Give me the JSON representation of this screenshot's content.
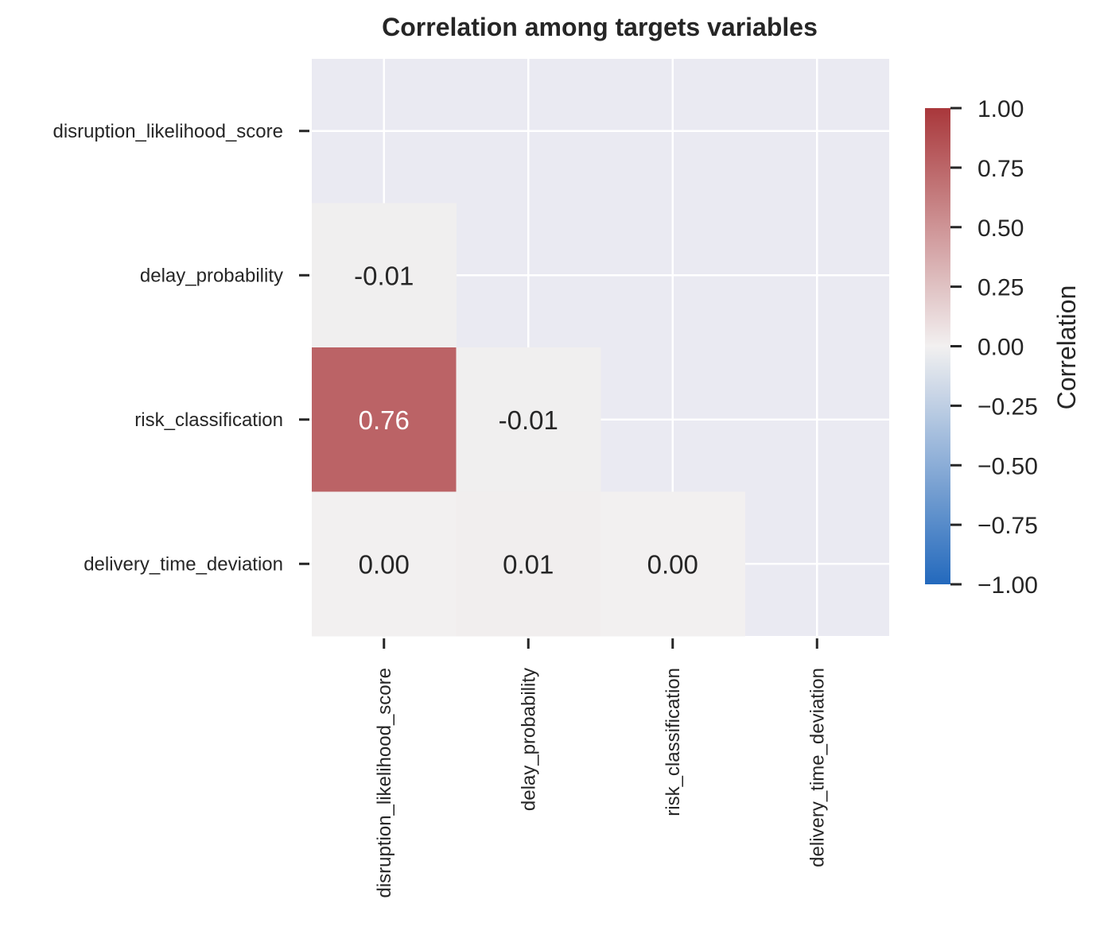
{
  "chart_data": {
    "type": "heatmap",
    "title": "Correlation among targets variables",
    "variables": [
      "disruption_likelihood_score",
      "delay_probability",
      "risk_classification",
      "delivery_time_deviation"
    ],
    "mask": "upper-triangle-including-diagonal",
    "cells": [
      {
        "row": 1,
        "col": 0,
        "value": -0.01,
        "label": "-0.01"
      },
      {
        "row": 2,
        "col": 0,
        "value": 0.76,
        "label": "0.76"
      },
      {
        "row": 2,
        "col": 1,
        "value": -0.01,
        "label": "-0.01"
      },
      {
        "row": 3,
        "col": 0,
        "value": 0.0,
        "label": "0.00"
      },
      {
        "row": 3,
        "col": 1,
        "value": 0.01,
        "label": "0.01"
      },
      {
        "row": 3,
        "col": 2,
        "value": 0.0,
        "label": "0.00"
      }
    ],
    "colorbar": {
      "title": "Correlation",
      "range": [
        -1,
        1
      ],
      "ticks": [
        1.0,
        0.75,
        0.5,
        0.25,
        0.0,
        -0.25,
        -0.5,
        -0.75,
        -1.0
      ],
      "tick_labels": [
        "1.00",
        "0.75",
        "0.50",
        "0.25",
        "0.00",
        "−0.25",
        "−0.50",
        "−0.75",
        "−1.00"
      ],
      "colormap": "vlag",
      "colors": {
        "low": "#2369bd",
        "mid": "#f2f0f0",
        "high": "#a9373b"
      }
    },
    "background_color": "#eaeaf2",
    "grid": true
  }
}
